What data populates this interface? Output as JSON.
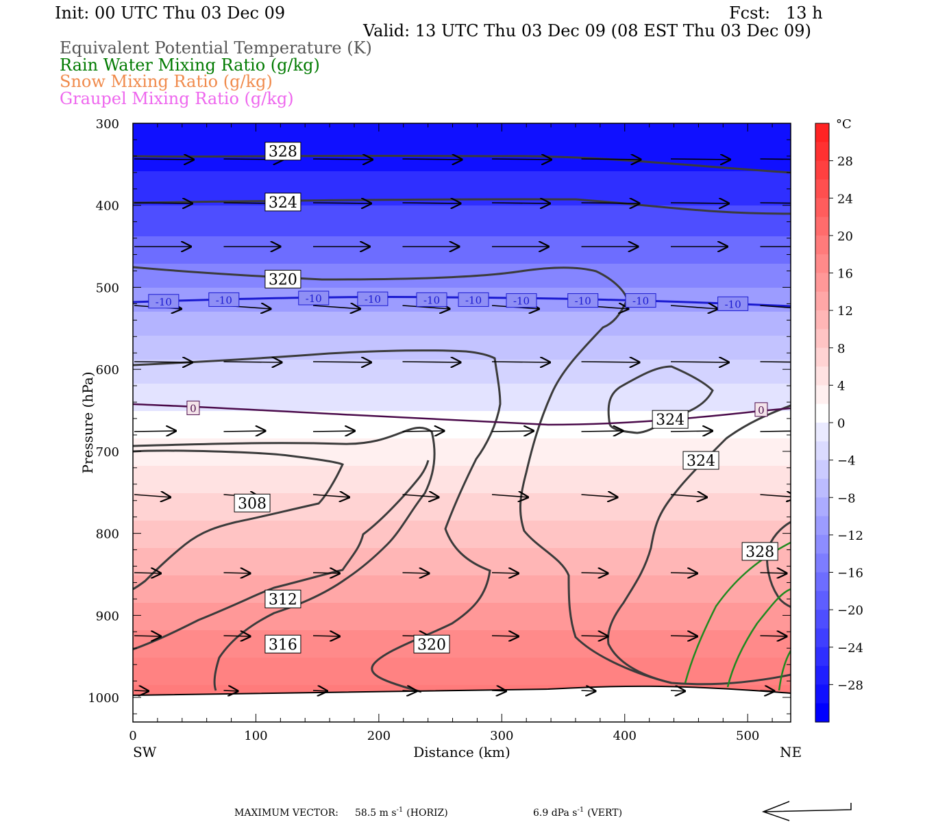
{
  "header": {
    "init": "Init: 00 UTC Thu 03 Dec 09",
    "fcst": "Fcst:   13 h",
    "valid": "Valid: 13 UTC Thu 03 Dec 09 (08 EST Thu 03 Dec 09)"
  },
  "fields": [
    {
      "label": "Equivalent Potential Temperature (K)",
      "color": "#555555"
    },
    {
      "label": "Rain Water Mixing Ratio (g/kg)",
      "color": "#007a00"
    },
    {
      "label": "Snow Mixing Ratio (g/kg)",
      "color": "#f08a4b"
    },
    {
      "label": "Graupel Mixing Ratio (g/kg)",
      "color": "#ee66ee"
    }
  ],
  "chart_data": {
    "type": "cross-section",
    "xlabel": "Distance (km)",
    "ylabel": "Pressure (hPa)",
    "xlim": [
      0,
      535
    ],
    "ylim": [
      1030,
      300
    ],
    "x_ticks": [
      0,
      100,
      200,
      300,
      400,
      500
    ],
    "y_ticks": [
      300,
      400,
      500,
      600,
      700,
      800,
      900,
      1000
    ],
    "x_end_labels": {
      "left": "SW",
      "right": "NE"
    },
    "temperature_colorbar": {
      "unit": "°C",
      "labels": [
        28,
        24,
        20,
        16,
        12,
        8,
        4,
        0,
        -4,
        -8,
        -12,
        -16,
        -20,
        -24,
        -28
      ]
    },
    "isotherm_labels": [
      {
        "value": "-10",
        "x": 25,
        "p": 517
      },
      {
        "value": "-10",
        "x": 74,
        "p": 515
      },
      {
        "value": "-10",
        "x": 147,
        "p": 513
      },
      {
        "value": "-10",
        "x": 195,
        "p": 514
      },
      {
        "value": "-10",
        "x": 243,
        "p": 515
      },
      {
        "value": "-10",
        "x": 277,
        "p": 515
      },
      {
        "value": "-10",
        "x": 316,
        "p": 516
      },
      {
        "value": "-10",
        "x": 366,
        "p": 516
      },
      {
        "value": "-10",
        "x": 413,
        "p": 516
      },
      {
        "value": "-10",
        "x": 488,
        "p": 520
      },
      {
        "value": "0",
        "x": 49,
        "p": 647
      },
      {
        "value": "0",
        "x": 511,
        "p": 649
      }
    ],
    "theta_e_labels": [
      {
        "value": "328",
        "x": 122,
        "p": 334
      },
      {
        "value": "324",
        "x": 122,
        "p": 396
      },
      {
        "value": "320",
        "x": 122,
        "p": 490
      },
      {
        "value": "324",
        "x": 437,
        "p": 661
      },
      {
        "value": "324",
        "x": 462,
        "p": 711
      },
      {
        "value": "308",
        "x": 97,
        "p": 763
      },
      {
        "value": "328",
        "x": 510,
        "p": 822
      },
      {
        "value": "312",
        "x": 122,
        "p": 880
      },
      {
        "value": "316",
        "x": 122,
        "p": 935
      },
      {
        "value": "320",
        "x": 243,
        "p": 935
      }
    ],
    "max_vector": {
      "label": "MAXIMUM VECTOR:",
      "horiz": "58.5 m s",
      "horiz_unit": "(HORIZ)",
      "vert": "6.9 dPa s",
      "vert_unit": "(VERT)",
      "exponent": "-1"
    }
  }
}
